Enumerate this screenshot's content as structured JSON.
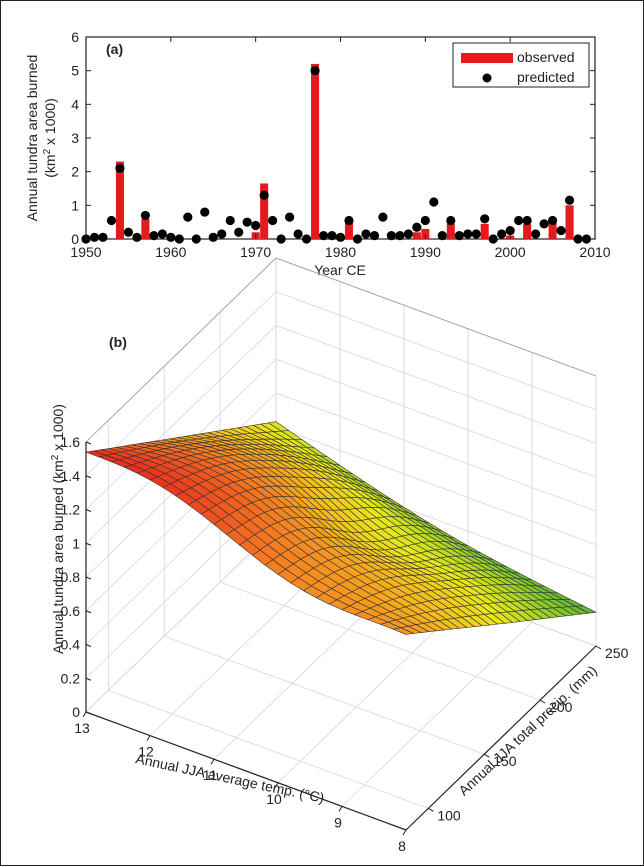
{
  "chart_data": [
    {
      "panel_label": "(a)",
      "type": "bar",
      "xlabel": "Year CE",
      "ylabel_line1": "Annual tundra area burned",
      "ylabel_line2_pre": "(km",
      "ylabel_line2_sup": "2",
      "ylabel_line2_post": " x 1000)",
      "xlim": [
        1950,
        2010
      ],
      "ylim": [
        0,
        6
      ],
      "xticks": [
        "1950",
        "1960",
        "1970",
        "1980",
        "1990",
        "2000",
        "2010"
      ],
      "yticks": [
        "0",
        "1",
        "2",
        "3",
        "4",
        "5",
        "6"
      ],
      "legend": {
        "position": "top-right",
        "observed": "observed",
        "predicted": "predicted"
      },
      "colors": {
        "observed": "#e41a1c",
        "predicted": "#000000"
      },
      "years": [
        1950,
        1951,
        1952,
        1953,
        1954,
        1955,
        1956,
        1957,
        1958,
        1959,
        1960,
        1961,
        1962,
        1963,
        1964,
        1965,
        1966,
        1967,
        1968,
        1969,
        1970,
        1971,
        1972,
        1973,
        1974,
        1975,
        1976,
        1977,
        1978,
        1979,
        1980,
        1981,
        1982,
        1983,
        1984,
        1985,
        1986,
        1987,
        1988,
        1989,
        1990,
        1991,
        1992,
        1993,
        1994,
        1995,
        1996,
        1997,
        1998,
        1999,
        2000,
        2001,
        2002,
        2003,
        2004,
        2005,
        2006,
        2007,
        2008,
        2009
      ],
      "observed": [
        0,
        0,
        0,
        0,
        2.3,
        0,
        0,
        0.6,
        0,
        0,
        0,
        0,
        0,
        0,
        0,
        0,
        0,
        0,
        0,
        0,
        0.2,
        1.65,
        0,
        0,
        0,
        0,
        0,
        5.2,
        0,
        0,
        0,
        0.5,
        0,
        0,
        0,
        0,
        0,
        0,
        0,
        0.2,
        0.3,
        0,
        0,
        0.45,
        0,
        0,
        0,
        0.45,
        0,
        0,
        0.1,
        0,
        0.45,
        0,
        0,
        0.5,
        0,
        1.0,
        0,
        0
      ],
      "predicted": [
        0,
        0.05,
        0.05,
        0.55,
        2.1,
        0.2,
        0.05,
        0.7,
        0.1,
        0.15,
        0.05,
        0,
        0.65,
        0,
        0.8,
        0.05,
        0.15,
        0.55,
        0.2,
        0.5,
        0.4,
        1.3,
        0.55,
        0,
        0.65,
        0.15,
        0,
        5.0,
        0.1,
        0.1,
        0.05,
        0.55,
        0,
        0.15,
        0.1,
        0.65,
        0.1,
        0.1,
        0.15,
        0.35,
        0.55,
        1.1,
        0.1,
        0.55,
        0.1,
        0.15,
        0.15,
        0.6,
        0,
        0.15,
        0.25,
        0.55,
        0.55,
        0.15,
        0.45,
        0.55,
        0.25,
        1.15,
        0,
        0
      ]
    },
    {
      "panel_label": "(b)",
      "type": "surface",
      "xlabel": "Annual JJA average temp. (°C)",
      "ylabel": "Annual JJA total precip. (mm)",
      "zlabel_pre": "Annual tundra area burned (km",
      "zlabel_sup": "2",
      "zlabel_post": " x 1000)",
      "temp_range": [
        8,
        13
      ],
      "precip_range": [
        80,
        250
      ],
      "zlim": [
        0,
        1.6
      ],
      "temp_ticks": [
        "13",
        "12",
        "11",
        "10",
        "9",
        "8"
      ],
      "precip_ticks": [
        "100",
        "150",
        "200",
        "250"
      ],
      "z_ticks": [
        "0",
        "0.2",
        "0.4",
        "0.6",
        "0.8",
        "1",
        "1.2",
        "1.4",
        "1.6"
      ],
      "colormap": [
        "#3faa2e",
        "#8ccc2a",
        "#e8e81a",
        "#f7b81c",
        "#f57a22",
        "#e8241e"
      ],
      "corner_values": {
        "temp13_precip80": 1.54,
        "temp8_precip80": 1.12,
        "temp13_precip250": 0.63,
        "temp8_precip250": 0.2
      },
      "grid_size": [
        25,
        25
      ]
    }
  ]
}
